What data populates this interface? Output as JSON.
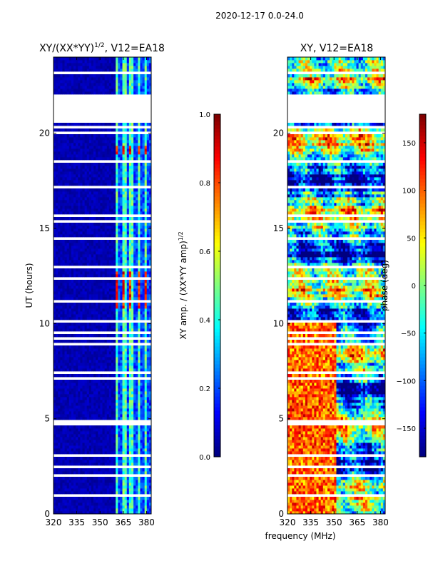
{
  "figure": {
    "suptitle": "2020-12-17 0.0-24.0",
    "xlabel": "frequency (MHz)"
  },
  "colors": {
    "jet": [
      "#00007f",
      "#0000ff",
      "#007fff",
      "#00ffff",
      "#7fff7f",
      "#ffff00",
      "#ff7f00",
      "#ff0000",
      "#7f0000"
    ],
    "background": "#ffffff",
    "axis": "#000000"
  },
  "chart_data": [
    {
      "type": "heatmap",
      "name": "amplitude",
      "title_base": "XY/(XX*YY)",
      "title_exp": "1/2",
      "title_suffix": ", V12=EA18",
      "ylabel": "UT (hours)",
      "xlim": [
        320,
        383
      ],
      "ylim": [
        0,
        24
      ],
      "xticks": [
        320,
        335,
        350,
        365,
        380
      ],
      "yticks": [
        0,
        5,
        10,
        15,
        20
      ],
      "colorbar": {
        "label_base": "XY amp. / (XX*YY amp)",
        "label_exp": "1/2",
        "range": [
          0.0,
          1.0
        ],
        "ticks": [
          "0.0",
          "0.2",
          "0.4",
          "0.6",
          "0.8",
          "1.0"
        ]
      }
    },
    {
      "type": "heatmap",
      "name": "phase",
      "title": "XY, V12=EA18",
      "xlim": [
        320,
        383
      ],
      "ylim": [
        0,
        24
      ],
      "xticks": [
        320,
        335,
        350,
        365,
        380
      ],
      "yticks": [
        0,
        5,
        10,
        15,
        20
      ],
      "colorbar": {
        "label": "phase (deg)",
        "range": [
          -180,
          180
        ],
        "ticks": [
          "−150",
          "−100",
          "−50",
          "0",
          "50",
          "100",
          "150"
        ]
      }
    }
  ]
}
